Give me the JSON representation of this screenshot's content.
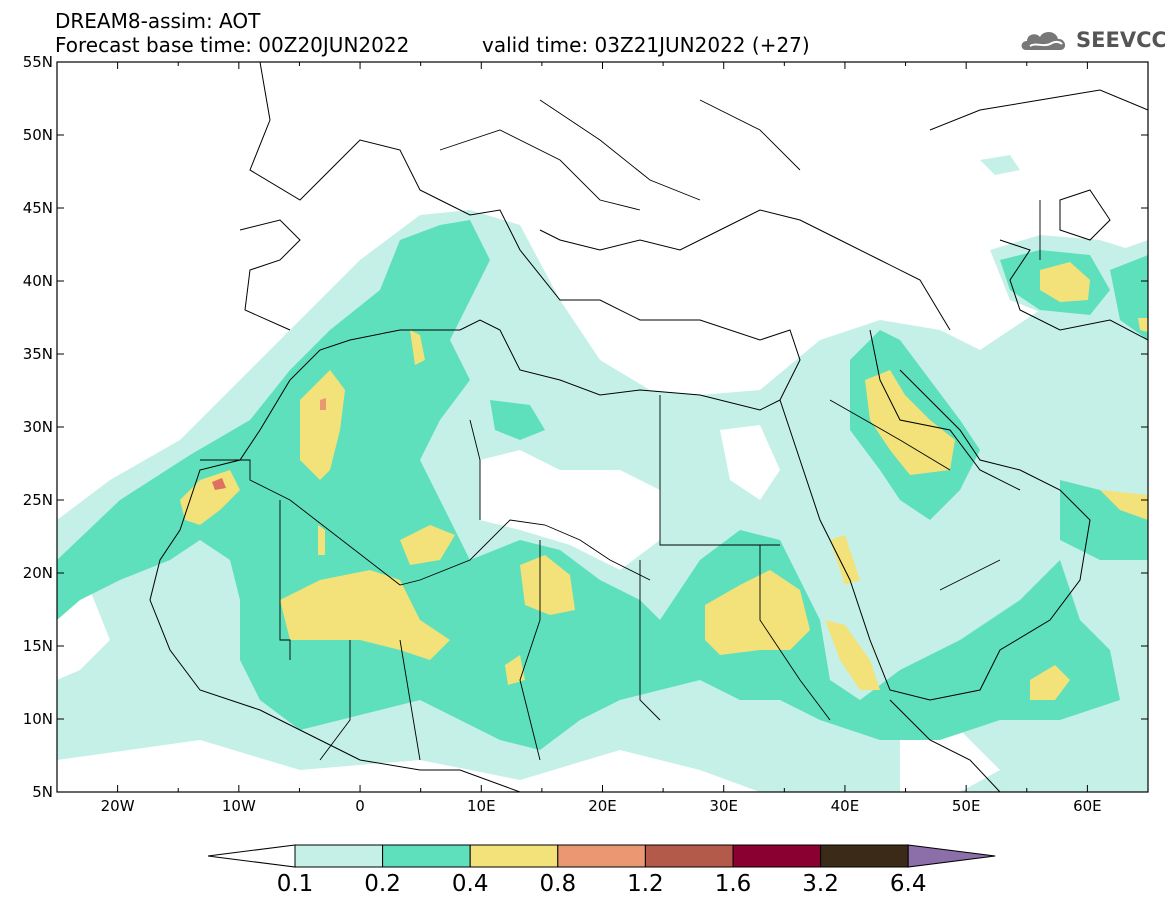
{
  "header": {
    "title": "DREAM8-assim: AOT",
    "base_time": "Forecast base time: 00Z20JUN2022",
    "valid_time": "valid time: 03Z21JUN2022 (+27)"
  },
  "logo": {
    "text": "SEEVCCC",
    "icon": "cloud-icon"
  },
  "map": {
    "lat_labels": [
      "55N",
      "50N",
      "45N",
      "40N",
      "35N",
      "30N",
      "25N",
      "20N",
      "15N",
      "10N",
      "5N"
    ],
    "lon_labels": [
      "20W",
      "10W",
      "0",
      "10E",
      "20E",
      "30E",
      "40E",
      "50E",
      "60E"
    ],
    "lat_range": [
      5,
      55
    ],
    "lon_range": [
      -25,
      65
    ]
  },
  "colorbar": {
    "colors": [
      "#c4f0e8",
      "#5ee0bc",
      "#f3e27a",
      "#ea9772",
      "#b45a4a",
      "#8a0030",
      "#3c2a18",
      "#8c6ea8"
    ],
    "labels": [
      "0.1",
      "0.2",
      "0.4",
      "0.8",
      "1.2",
      "1.6",
      "3.2",
      "6.4"
    ],
    "lower_arrow_color": "#ffffff",
    "upper_arrow_color": "#8c6ea8"
  }
}
